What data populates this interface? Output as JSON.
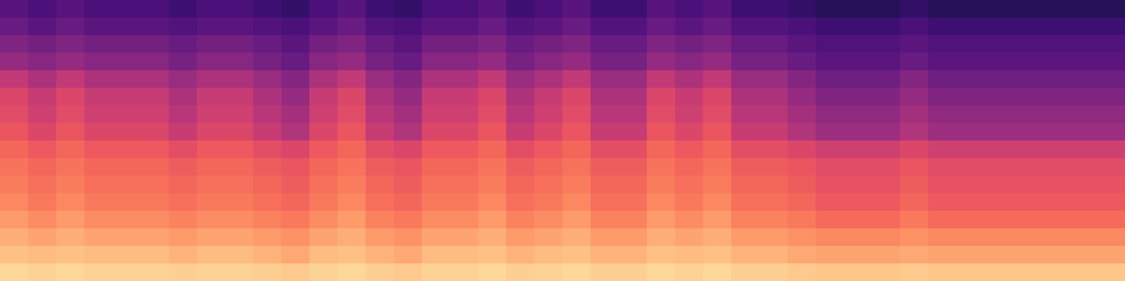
{
  "chart_data": {
    "type": "heatmap",
    "color": "magma",
    "tick_labels": false,
    "color_range": [
      0,
      100
    ],
    "cells": [
      [
        92,
        91,
        92,
        91,
        91,
        91,
        90,
        91,
        91,
        90,
        89,
        91,
        92,
        90,
        89,
        91,
        91,
        92,
        90,
        91,
        92,
        90,
        90,
        92,
        91,
        92,
        90,
        90,
        89,
        88,
        88,
        88,
        89,
        88,
        88,
        88,
        88,
        88,
        88,
        88
      ],
      [
        87,
        86,
        87,
        86,
        86,
        86,
        84,
        86,
        86,
        84,
        82,
        86,
        87,
        84,
        82,
        86,
        86,
        87,
        84,
        86,
        87,
        84,
        84,
        87,
        86,
        87,
        84,
        84,
        82,
        81,
        81,
        81,
        82,
        81,
        81,
        81,
        81,
        81,
        81,
        81
      ],
      [
        83,
        81,
        83,
        81,
        81,
        81,
        79,
        81,
        81,
        79,
        77,
        81,
        83,
        79,
        77,
        81,
        81,
        83,
        79,
        81,
        83,
        79,
        79,
        83,
        81,
        83,
        79,
        79,
        77,
        75,
        75,
        75,
        77,
        75,
        75,
        75,
        75,
        75,
        75,
        75
      ],
      [
        79,
        76,
        79,
        76,
        76,
        76,
        74,
        76,
        76,
        74,
        72,
        76,
        79,
        74,
        72,
        76,
        76,
        79,
        74,
        76,
        79,
        74,
        74,
        79,
        76,
        79,
        74,
        74,
        72,
        69,
        69,
        69,
        72,
        69,
        69,
        69,
        69,
        69,
        69,
        69
      ],
      [
        75,
        72,
        75,
        72,
        72,
        72,
        70,
        72,
        72,
        70,
        68,
        72,
        75,
        70,
        68,
        72,
        72,
        75,
        70,
        72,
        75,
        70,
        70,
        75,
        72,
        75,
        70,
        70,
        68,
        65,
        65,
        65,
        68,
        65,
        65,
        65,
        65,
        65,
        65,
        65
      ],
      [
        73,
        70,
        73,
        70,
        70,
        70,
        68,
        70,
        70,
        68,
        66,
        70,
        73,
        68,
        66,
        70,
        70,
        73,
        68,
        70,
        73,
        68,
        68,
        73,
        70,
        73,
        68,
        68,
        66,
        63,
        63,
        63,
        66,
        63,
        63,
        63,
        63,
        63,
        63,
        63
      ],
      [
        71,
        68,
        71,
        68,
        68,
        68,
        66,
        68,
        68,
        66,
        64,
        68,
        71,
        66,
        64,
        68,
        68,
        71,
        66,
        68,
        71,
        66,
        66,
        71,
        68,
        71,
        66,
        66,
        64,
        61,
        61,
        61,
        64,
        61,
        61,
        61,
        61,
        61,
        61,
        61
      ],
      [
        68,
        65,
        68,
        65,
        65,
        65,
        62,
        65,
        65,
        62,
        59,
        65,
        68,
        62,
        59,
        65,
        65,
        68,
        62,
        65,
        68,
        62,
        62,
        68,
        65,
        68,
        62,
        62,
        59,
        56,
        56,
        56,
        59,
        56,
        56,
        56,
        56,
        56,
        56,
        56
      ],
      [
        64,
        59,
        64,
        59,
        59,
        59,
        54,
        59,
        59,
        54,
        49,
        59,
        64,
        54,
        49,
        59,
        59,
        64,
        54,
        59,
        64,
        54,
        54,
        64,
        59,
        64,
        54,
        54,
        49,
        44,
        44,
        44,
        49,
        44,
        44,
        44,
        44,
        44,
        44,
        44
      ],
      [
        61,
        56,
        61,
        56,
        56,
        56,
        51,
        56,
        56,
        51,
        46,
        56,
        61,
        51,
        46,
        56,
        56,
        61,
        51,
        56,
        61,
        51,
        51,
        61,
        56,
        61,
        51,
        51,
        46,
        41,
        41,
        41,
        46,
        41,
        41,
        41,
        41,
        41,
        41,
        41
      ],
      [
        59,
        54,
        59,
        54,
        54,
        54,
        48,
        54,
        54,
        48,
        42,
        54,
        59,
        48,
        42,
        54,
        54,
        59,
        48,
        54,
        59,
        48,
        48,
        59,
        54,
        59,
        48,
        48,
        42,
        37,
        37,
        37,
        42,
        37,
        37,
        37,
        37,
        37,
        37,
        37
      ],
      [
        53,
        48,
        53,
        48,
        48,
        48,
        43,
        48,
        48,
        43,
        38,
        48,
        53,
        43,
        38,
        48,
        48,
        53,
        43,
        48,
        53,
        43,
        43,
        53,
        48,
        53,
        43,
        43,
        38,
        33,
        33,
        33,
        38,
        33,
        33,
        33,
        33,
        33,
        33,
        33
      ],
      [
        42,
        39,
        42,
        39,
        39,
        39,
        35,
        39,
        39,
        35,
        31,
        39,
        42,
        35,
        31,
        39,
        39,
        42,
        35,
        39,
        42,
        35,
        35,
        42,
        39,
        42,
        35,
        35,
        31,
        28,
        28,
        28,
        31,
        28,
        28,
        28,
        28,
        28,
        28,
        28
      ],
      [
        37,
        34,
        37,
        34,
        34,
        34,
        31,
        34,
        34,
        31,
        28,
        34,
        37,
        31,
        28,
        34,
        34,
        37,
        31,
        34,
        37,
        31,
        31,
        37,
        34,
        37,
        31,
        31,
        28,
        25,
        25,
        25,
        28,
        25,
        25,
        25,
        25,
        25,
        25,
        25
      ],
      [
        31,
        28,
        31,
        28,
        28,
        28,
        26,
        28,
        28,
        26,
        24,
        28,
        31,
        26,
        24,
        28,
        28,
        31,
        26,
        28,
        31,
        26,
        26,
        31,
        28,
        31,
        26,
        26,
        24,
        21,
        21,
        21,
        24,
        21,
        21,
        21,
        21,
        21,
        21,
        21
      ],
      [
        27,
        24,
        27,
        24,
        24,
        24,
        21,
        24,
        24,
        21,
        18,
        24,
        27,
        21,
        18,
        24,
        24,
        27,
        21,
        24,
        27,
        21,
        21,
        27,
        24,
        27,
        21,
        21,
        18,
        15,
        15,
        15,
        18,
        15,
        15,
        15,
        15,
        15,
        15,
        15
      ]
    ]
  }
}
